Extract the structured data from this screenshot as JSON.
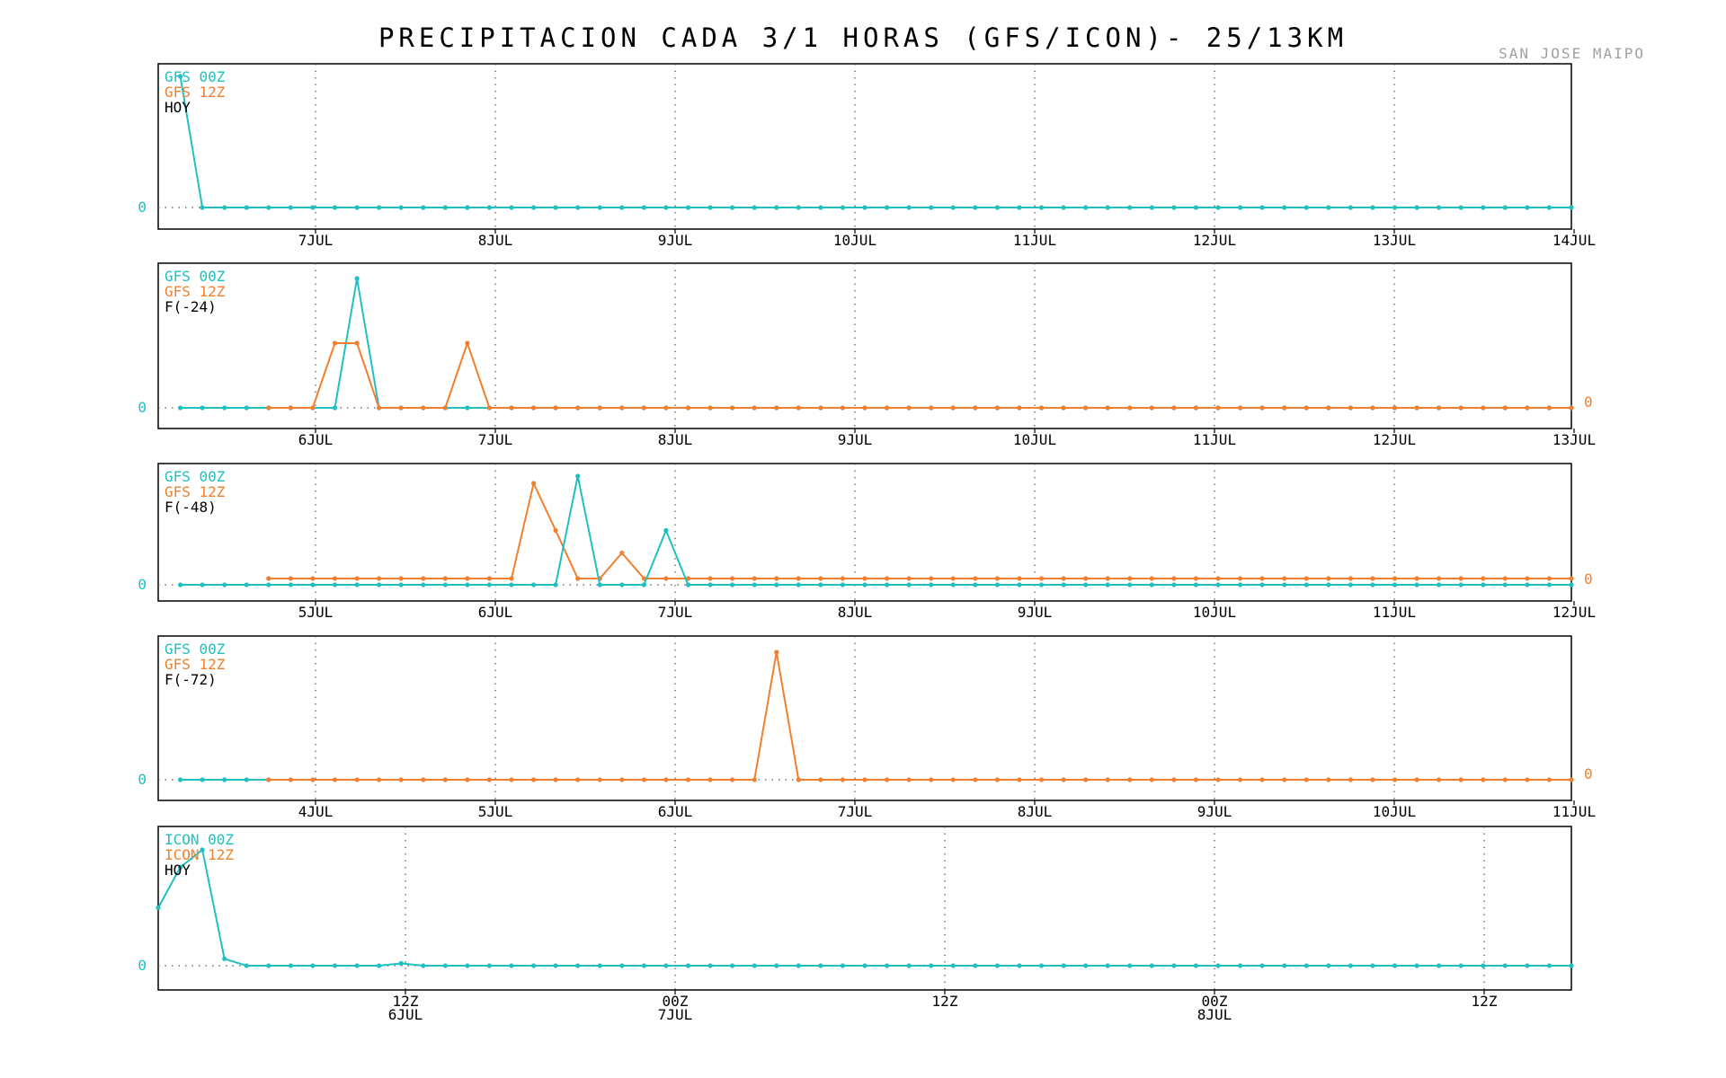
{
  "title": "PRECIPITACION CADA 3/1 HORAS (GFS/ICON)- 25/13KM",
  "station": "SAN JOSE MAIPO",
  "colors": {
    "series_00z": "#20c0c0",
    "series_12z": "#f08030",
    "text": "#000000",
    "grid": "#555555"
  },
  "chart_data": [
    {
      "type": "line",
      "legend": [
        "GFS 00Z",
        "GFS 12Z",
        "HOY"
      ],
      "tick_labels": [
        [
          "7JUL"
        ],
        [
          "8JUL"
        ],
        [
          "9JUL"
        ],
        [
          "10JUL"
        ],
        [
          "11JUL"
        ],
        [
          "12JUL"
        ],
        [
          "13JUL"
        ],
        [
          "14JUL"
        ]
      ],
      "zero_label_left": "0",
      "zero_label_right": "",
      "series": [
        {
          "name": "GFS 00Z",
          "color": "#20c0c0",
          "start": 1,
          "count": 64,
          "values": [
            1.0,
            0,
            0,
            0,
            0,
            0,
            0,
            0,
            0,
            0,
            0,
            0,
            0,
            0,
            0,
            0,
            0,
            0,
            0,
            0,
            0,
            0,
            0,
            0,
            0,
            0,
            0,
            0,
            0,
            0,
            0,
            0,
            0,
            0,
            0,
            0,
            0,
            0,
            0,
            0,
            0,
            0,
            0,
            0,
            0,
            0,
            0,
            0,
            0,
            0,
            0,
            0,
            0,
            0,
            0,
            0,
            0,
            0,
            0,
            0,
            0,
            0,
            0,
            0
          ]
        }
      ]
    },
    {
      "type": "line",
      "legend": [
        "GFS 00Z",
        "GFS 12Z",
        "F(-24)"
      ],
      "tick_labels": [
        [
          "6JUL"
        ],
        [
          "7JUL"
        ],
        [
          "8JUL"
        ],
        [
          "9JUL"
        ],
        [
          "10JUL"
        ],
        [
          "11JUL"
        ],
        [
          "12JUL"
        ],
        [
          "13JUL"
        ]
      ],
      "zero_label_left": "0",
      "zero_label_right": "0",
      "series": [
        {
          "name": "GFS 00Z",
          "color": "#20c0c0",
          "start": 1,
          "count": 64,
          "values": [
            0,
            0,
            0,
            0,
            0,
            0,
            0,
            0,
            1.0,
            0,
            0,
            0,
            0,
            0,
            0,
            0,
            0,
            0,
            0,
            0,
            0,
            0,
            0,
            0,
            0,
            0,
            0,
            0,
            0,
            0,
            0,
            0,
            0,
            0,
            0,
            0,
            0,
            0,
            0,
            0,
            0,
            0,
            0,
            0,
            0,
            0,
            0,
            0,
            0,
            0,
            0,
            0,
            0,
            0,
            0,
            0,
            0,
            0,
            0,
            0,
            0,
            0,
            0,
            0
          ]
        },
        {
          "name": "GFS 12Z",
          "color": "#f08030",
          "start": 5,
          "count": 60,
          "values": [
            0,
            0,
            0,
            0.5,
            0.5,
            0,
            0,
            0,
            0,
            0.5,
            0,
            0,
            0,
            0,
            0,
            0,
            0,
            0,
            0,
            0,
            0,
            0,
            0,
            0,
            0,
            0,
            0,
            0,
            0,
            0,
            0,
            0,
            0,
            0,
            0,
            0,
            0,
            0,
            0,
            0,
            0,
            0,
            0,
            0,
            0,
            0,
            0,
            0,
            0,
            0,
            0,
            0,
            0,
            0,
            0,
            0,
            0,
            0,
            0,
            0
          ]
        }
      ]
    },
    {
      "type": "line",
      "legend": [
        "GFS 00Z",
        "GFS 12Z",
        "F(-48)"
      ],
      "tick_labels": [
        [
          "5JUL"
        ],
        [
          "6JUL"
        ],
        [
          "7JUL"
        ],
        [
          "8JUL"
        ],
        [
          "9JUL"
        ],
        [
          "10JUL"
        ],
        [
          "11JUL"
        ],
        [
          "12JUL"
        ]
      ],
      "zero_label_left": "0",
      "zero_label_right": "0",
      "series": [
        {
          "name": "GFS 00Z",
          "color": "#20c0c0",
          "start": 1,
          "count": 64,
          "values": [
            0,
            0,
            0,
            0,
            0,
            0,
            0,
            0,
            0,
            0,
            0,
            0,
            0,
            0,
            0,
            0,
            0,
            0,
            1.0,
            0,
            0,
            0,
            0.5,
            0,
            0,
            0,
            0,
            0,
            0,
            0,
            0,
            0,
            0,
            0,
            0,
            0,
            0,
            0,
            0,
            0,
            0,
            0,
            0,
            0,
            0,
            0,
            0,
            0,
            0,
            0,
            0,
            0,
            0,
            0,
            0,
            0,
            0,
            0,
            0,
            0,
            0,
            0,
            0,
            0
          ]
        },
        {
          "name": "GFS 12Z",
          "color": "#f08030",
          "start": 5,
          "count": 60,
          "values": [
            0,
            0,
            0,
            0,
            0,
            0,
            0,
            0,
            0,
            0,
            0,
            0,
            0.93,
            0.47,
            0,
            0,
            0.25,
            0,
            0,
            0,
            0,
            0,
            0,
            0,
            0,
            0,
            0,
            0,
            0,
            0,
            0,
            0,
            0,
            0,
            0,
            0,
            0,
            0,
            0,
            0,
            0,
            0,
            0,
            0,
            0,
            0,
            0,
            0,
            0,
            0,
            0,
            0,
            0,
            0,
            0,
            0,
            0,
            0,
            0,
            0
          ]
        }
      ]
    },
    {
      "type": "line",
      "legend": [
        "GFS 00Z",
        "GFS 12Z",
        "F(-72)"
      ],
      "tick_labels": [
        [
          "4JUL"
        ],
        [
          "5JUL"
        ],
        [
          "6JUL"
        ],
        [
          "7JUL"
        ],
        [
          "8JUL"
        ],
        [
          "9JUL"
        ],
        [
          "10JUL"
        ],
        [
          "11JUL"
        ]
      ],
      "zero_label_left": "0",
      "zero_label_right": "0",
      "series": [
        {
          "name": "GFS 00Z",
          "color": "#20c0c0",
          "start": 1,
          "count": 5,
          "values": [
            0,
            0,
            0,
            0,
            0
          ]
        },
        {
          "name": "GFS 12Z",
          "color": "#f08030",
          "start": 5,
          "count": 60,
          "values": [
            0,
            0,
            0,
            0,
            0,
            0,
            0,
            0,
            0,
            0,
            0,
            0,
            0,
            0,
            0,
            0,
            0,
            0,
            0,
            0,
            0,
            0,
            0,
            1.0,
            0,
            0,
            0,
            0,
            0,
            0,
            0,
            0,
            0,
            0,
            0,
            0,
            0,
            0,
            0,
            0,
            0,
            0,
            0,
            0,
            0,
            0,
            0,
            0,
            0,
            0,
            0,
            0,
            0,
            0,
            0,
            0,
            0,
            0,
            0,
            0
          ]
        }
      ]
    },
    {
      "type": "line",
      "legend": [
        "ICON 00Z",
        "ICON 12Z",
        "HOY"
      ],
      "tick_labels": [
        [
          "12Z",
          "6JUL"
        ],
        [
          "00Z",
          "7JUL"
        ],
        [
          "12Z"
        ],
        [
          "00Z",
          "8JUL"
        ],
        [
          "12Z"
        ]
      ],
      "zero_label_left": "0",
      "zero_label_right": "",
      "series": [
        {
          "name": "ICON 00Z",
          "color": "#20c0c0",
          "start": 0,
          "count": 65,
          "values": [
            0.5,
            0.85,
            1.0,
            0.06,
            0,
            0,
            0,
            0,
            0,
            0,
            0,
            0.02,
            0,
            0,
            0,
            0,
            0,
            0,
            0,
            0,
            0,
            0,
            0,
            0,
            0,
            0,
            0,
            0,
            0,
            0,
            0,
            0,
            0,
            0,
            0,
            0,
            0,
            0,
            0,
            0,
            0,
            0,
            0,
            0,
            0,
            0,
            0,
            0,
            0,
            0,
            0,
            0,
            0,
            0,
            0,
            0,
            0,
            0,
            0,
            0,
            0,
            0,
            0,
            0,
            0
          ]
        }
      ]
    }
  ]
}
